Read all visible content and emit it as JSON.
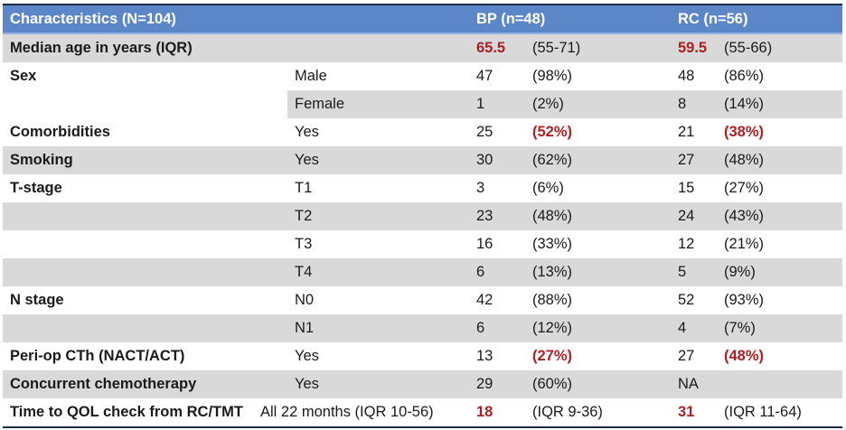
{
  "header": {
    "characteristics": "Characteristics (N=104)",
    "bp": "BP (n=48)",
    "rc": "RC (n=56)"
  },
  "rows": [
    {
      "label": "Median age in years (IQR)",
      "sub": "",
      "bp_n": "65.5",
      "bp_pct": "(55-71)",
      "rc_n": "59.5",
      "rc_pct": "(55-66)"
    },
    {
      "label": "Sex",
      "sub": "Male",
      "bp_n": "47",
      "bp_pct": "(98%)",
      "rc_n": "48",
      "rc_pct": "(86%)"
    },
    {
      "label": "",
      "sub": "Female",
      "bp_n": "1",
      "bp_pct": "(2%)",
      "rc_n": "8",
      "rc_pct": "(14%)"
    },
    {
      "label": "Comorbidities",
      "sub": "Yes",
      "bp_n": "25",
      "bp_pct": "(52%)",
      "rc_n": "21",
      "rc_pct": "(38%)"
    },
    {
      "label": "Smoking",
      "sub": "Yes",
      "bp_n": "30",
      "bp_pct": "(62%)",
      "rc_n": "27",
      "rc_pct": "(48%)"
    },
    {
      "label": "T-stage",
      "sub": "T1",
      "bp_n": "3",
      "bp_pct": "(6%)",
      "rc_n": "15",
      "rc_pct": "(27%)"
    },
    {
      "label": "",
      "sub": "T2",
      "bp_n": "23",
      "bp_pct": "(48%)",
      "rc_n": "24",
      "rc_pct": "(43%)"
    },
    {
      "label": "",
      "sub": "T3",
      "bp_n": "16",
      "bp_pct": "(33%)",
      "rc_n": "12",
      "rc_pct": "(21%)"
    },
    {
      "label": "",
      "sub": "T4",
      "bp_n": "6",
      "bp_pct": "(13%)",
      "rc_n": "5",
      "rc_pct": "(9%)"
    },
    {
      "label": "N stage",
      "sub": "N0",
      "bp_n": "42",
      "bp_pct": "(88%)",
      "rc_n": "52",
      "rc_pct": "(93%)"
    },
    {
      "label": "",
      "sub": "N1",
      "bp_n": "6",
      "bp_pct": "(12%)",
      "rc_n": "4",
      "rc_pct": "(7%)"
    },
    {
      "label": "Peri-op CTh (NACT/ACT)",
      "sub": "Yes",
      "bp_n": "13",
      "bp_pct": "(27%)",
      "rc_n": "27",
      "rc_pct": "(48%)"
    },
    {
      "label": "Concurrent chemotherapy",
      "sub": "Yes",
      "bp_n": "29",
      "bp_pct": "(60%)",
      "rc_n": "NA",
      "rc_pct": ""
    },
    {
      "label": "Time to QOL check from RC/TMT",
      "sub": "All 22 months (IQR 10-56)",
      "bp_n": "18",
      "bp_pct": "(IQR 9-36)",
      "rc_n": "31",
      "rc_pct": "(IQR 11-64)"
    }
  ],
  "colors": {
    "header_bg": "#5b87c9",
    "stripe": "#d9d9d9",
    "highlight": "#b01e23"
  }
}
